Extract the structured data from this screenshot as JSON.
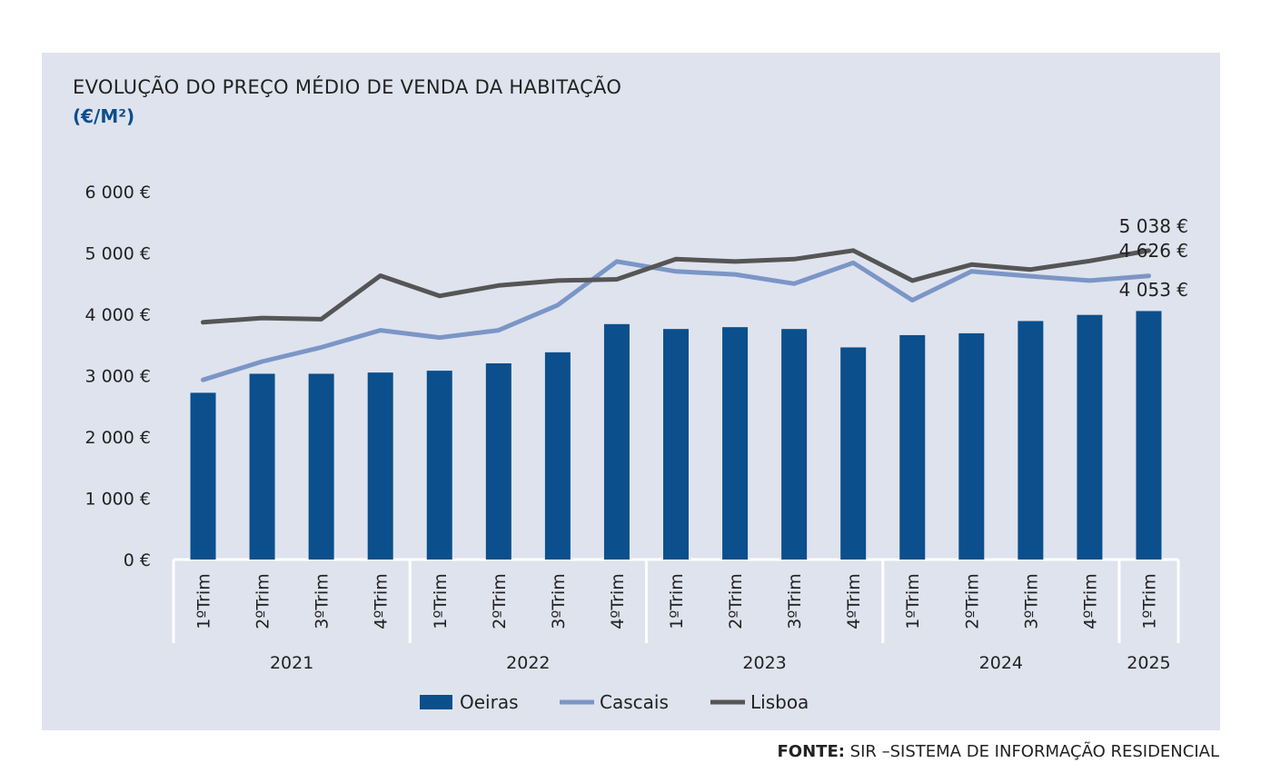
{
  "chart_data": {
    "type": "bar",
    "title": "EVOLUÇÃO DO PREÇO MÉDIO DE VENDA DA HABITAÇÃO",
    "subtitle": "(€/M²)",
    "categories": [
      "1ºTrim",
      "2ºTrim",
      "3ºTrim",
      "4ºTrim",
      "1ºTrim",
      "2ºTrim",
      "3ºTrim",
      "4ºTrim",
      "1ºTrim",
      "2ºTrim",
      "3ºTrim",
      "4ºTrim",
      "1ºTrim",
      "2ºTrim",
      "3ºTrim",
      "4ºTrim",
      "1ºTrim"
    ],
    "years": [
      {
        "label": "2021",
        "start": 0,
        "count": 4
      },
      {
        "label": "2022",
        "start": 4,
        "count": 4
      },
      {
        "label": "2023",
        "start": 8,
        "count": 4
      },
      {
        "label": "2024",
        "start": 12,
        "count": 4
      },
      {
        "label": "2025",
        "start": 16,
        "count": 1
      }
    ],
    "ylim": [
      0,
      6000
    ],
    "yticks": [
      0,
      1000,
      2000,
      3000,
      4000,
      5000,
      6000
    ],
    "ytick_labels": [
      "0 €",
      "1 000 €",
      "2 000 €",
      "3 000 €",
      "4 000 €",
      "5 000 €",
      "6 000 €"
    ],
    "series": [
      {
        "name": "Oeiras",
        "kind": "bar",
        "color": "#0b4f8c",
        "values": [
          2720,
          3030,
          3030,
          3050,
          3080,
          3200,
          3380,
          3840,
          3760,
          3790,
          3760,
          3460,
          3660,
          3690,
          3890,
          3990,
          4053
        ]
      },
      {
        "name": "Cascais",
        "kind": "line",
        "color": "#7b96c6",
        "values": [
          2930,
          3230,
          3460,
          3740,
          3620,
          3740,
          4150,
          4860,
          4700,
          4650,
          4500,
          4840,
          4230,
          4700,
          4620,
          4550,
          4626
        ]
      },
      {
        "name": "Lisboa",
        "kind": "line",
        "color": "#555555",
        "values": [
          3870,
          3940,
          3920,
          4630,
          4300,
          4470,
          4550,
          4570,
          4900,
          4860,
          4900,
          5040,
          4550,
          4810,
          4730,
          4870,
          5038
        ]
      }
    ],
    "data_labels": [
      {
        "series": "Lisboa",
        "index": 16,
        "text": "5 038 €"
      },
      {
        "series": "Cascais",
        "index": 16,
        "text": "4 626 €"
      },
      {
        "series": "Oeiras",
        "index": 16,
        "text": "4 053 €"
      }
    ],
    "legend": {
      "placement": "bottom",
      "items": [
        "Oeiras",
        "Cascais",
        "Lisboa"
      ]
    },
    "grid": false
  },
  "footer": {
    "label": "FONTE:",
    "text": " SIR –SISTEMA DE INFORMAÇÃO RESIDENCIAL"
  }
}
